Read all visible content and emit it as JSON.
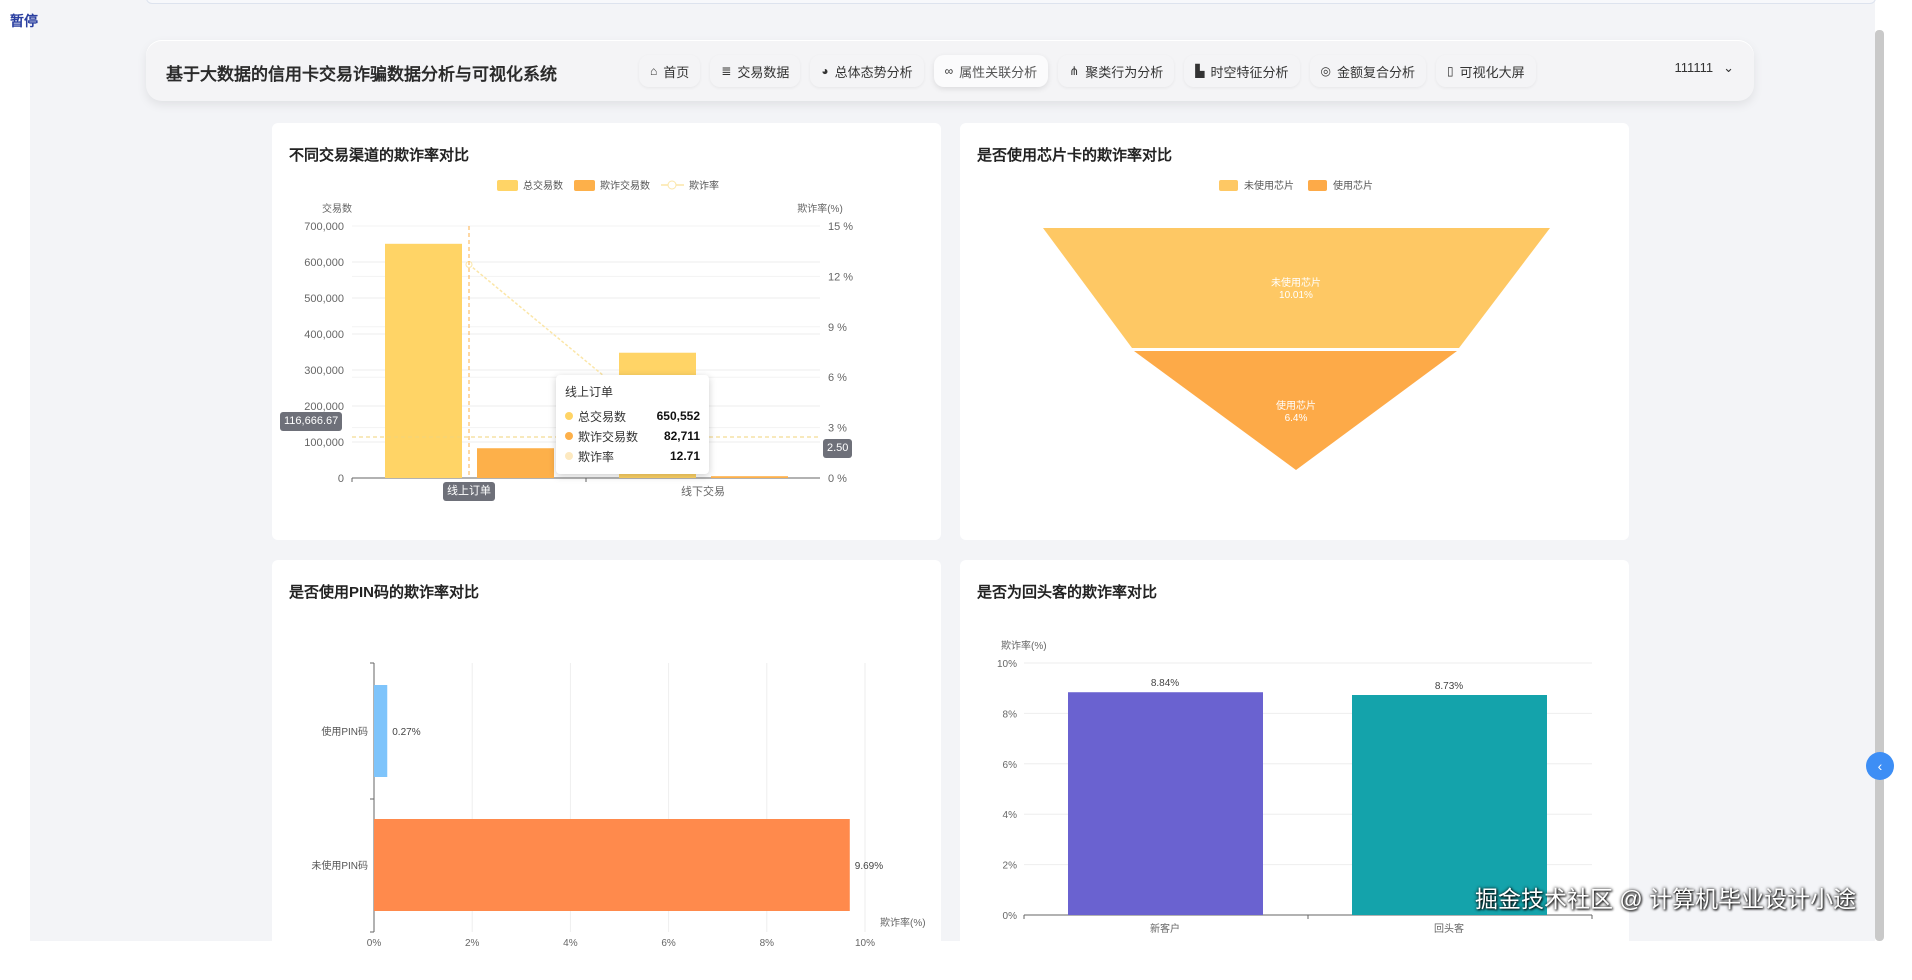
{
  "overlay": {
    "pause": "暂停",
    "watermark": "掘金技术社区 @ 计算机毕业设计小途"
  },
  "header": {
    "title": "基于大数据的信用卡交易诈骗数据分析与可视化系统",
    "user": "111111",
    "nav": [
      {
        "label": "首页",
        "icon": "home-icon",
        "glyph": "⌂"
      },
      {
        "label": "交易数据",
        "icon": "database-icon",
        "glyph": "≣"
      },
      {
        "label": "总体态势分析",
        "icon": "pie-chart-icon",
        "glyph": "◕"
      },
      {
        "label": "属性关联分析",
        "icon": "link-icon",
        "glyph": "∞",
        "active": true
      },
      {
        "label": "聚类行为分析",
        "icon": "cluster-icon",
        "glyph": "⋔"
      },
      {
        "label": "时空特征分析",
        "icon": "map-icon",
        "glyph": "▙"
      },
      {
        "label": "金额复合分析",
        "icon": "coins-icon",
        "glyph": "◎"
      },
      {
        "label": "可视化大屏",
        "icon": "screen-icon",
        "glyph": "▯"
      }
    ]
  },
  "chart_data": [
    {
      "title": "不同交易渠道的欺诈率对比",
      "type": "bar+line",
      "categories": [
        "线上订单",
        "线下交易"
      ],
      "ylabel": "交易数",
      "y2label": "欺诈率(%)",
      "ylim": [
        0,
        700000
      ],
      "y2lim": [
        0,
        15
      ],
      "yticks": [
        "0",
        "100,000",
        "200,000",
        "300,000",
        "400,000",
        "500,000",
        "600,000",
        "700,000"
      ],
      "y2ticks": [
        "0 %",
        "3 %",
        "6 %",
        "9 %",
        "12 %",
        "15 %"
      ],
      "series": [
        {
          "name": "总交易数",
          "type": "bar",
          "color": "#ffd466",
          "values": [
            650552,
            348000
          ]
        },
        {
          "name": "欺诈交易数",
          "type": "bar",
          "color": "#fdb04a",
          "values": [
            82711,
            5000
          ]
        },
        {
          "name": "欺诈率",
          "type": "line",
          "color": "#fbe6a8",
          "values": [
            12.71,
            1.2
          ]
        }
      ],
      "tooltip": {
        "title": "线上订单",
        "rows": [
          {
            "name": "总交易数",
            "value": "650,552",
            "color": "#ffd466"
          },
          {
            "name": "欺诈交易数",
            "value": "82,711",
            "color": "#fdb04a"
          },
          {
            "name": "欺诈率",
            "value": "12.71",
            "color": "#fde9c0"
          }
        ]
      },
      "pointer": {
        "y_value": "116,666.67",
        "y2_value": "2.50",
        "x_label": "线上订单"
      }
    },
    {
      "title": "是否使用芯片卡的欺诈率对比",
      "type": "funnel",
      "legend": [
        "未使用芯片",
        "使用芯片"
      ],
      "slices": [
        {
          "name": "未使用芯片",
          "value": 10.01,
          "label": "10.01%",
          "color": "#fec864"
        },
        {
          "name": "使用芯片",
          "value": 6.4,
          "label": "6.4%",
          "color": "#fdaa48"
        }
      ]
    },
    {
      "title": "是否使用PIN码的欺诈率对比",
      "type": "horizontal-bar",
      "xlabel": "欺诈率(%)",
      "xlim": [
        0,
        10
      ],
      "xticks": [
        "0%",
        "2%",
        "4%",
        "6%",
        "8%",
        "10%"
      ],
      "categories": [
        "使用PIN码",
        "未使用PIN码"
      ],
      "values": [
        0.27,
        9.69
      ],
      "labels": [
        "0.27%",
        "9.69%"
      ],
      "colors": [
        "#7ec4fb",
        "#ff8a4c"
      ]
    },
    {
      "title": "是否为回头客的欺诈率对比",
      "type": "bar",
      "ylabel": "欺诈率(%)",
      "ylim": [
        0,
        10
      ],
      "yticks": [
        "0%",
        "2%",
        "4%",
        "6%",
        "8%",
        "10%"
      ],
      "categories": [
        "新客户",
        "回头客"
      ],
      "values": [
        8.84,
        8.73
      ],
      "labels": [
        "8.84%",
        "8.73%"
      ],
      "colors": [
        "#6a62d0",
        "#14a3ab"
      ]
    }
  ]
}
